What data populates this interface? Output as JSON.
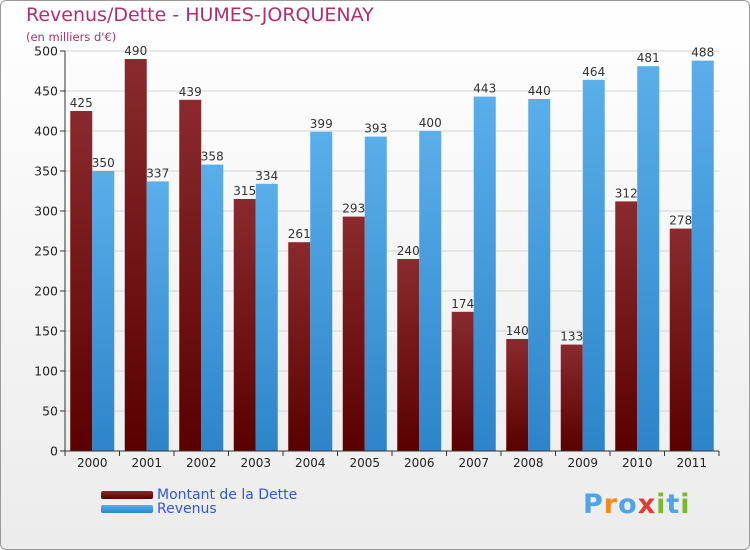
{
  "title": "Revenus/Dette - HUMES-JORQUENAY",
  "subtitle": "(en milliers d'€)",
  "colors": {
    "debt": "#6e0f16",
    "revenue": "#3f9ee6",
    "title": "#b0306a",
    "legend_text": "#3355dd"
  },
  "legend": [
    {
      "label": "Montant de la Dette",
      "color_key": "debt"
    },
    {
      "label": "Revenus",
      "color_key": "revenue"
    }
  ],
  "logo": {
    "letters": [
      "P",
      "r",
      "o",
      "x",
      "i",
      "t",
      "i"
    ],
    "colors": [
      "#4fa3e8",
      "#f08c1a",
      "#4fa3e8",
      "#e33b2f",
      "#7ab82e",
      "#4fa3e8",
      "#7ab82e"
    ]
  },
  "chart_data": {
    "type": "bar",
    "title": "Revenus/Dette - HUMES-JORQUENAY",
    "subtitle": "(en milliers d'€)",
    "categories": [
      "2000",
      "2001",
      "2002",
      "2003",
      "2004",
      "2005",
      "2006",
      "2007",
      "2008",
      "2009",
      "2010",
      "2011"
    ],
    "series": [
      {
        "name": "Montant de la Dette",
        "values": [
          425,
          490,
          439,
          315,
          261,
          293,
          240,
          174,
          140,
          133,
          312,
          278
        ]
      },
      {
        "name": "Revenus",
        "values": [
          350,
          337,
          358,
          334,
          399,
          393,
          400,
          443,
          440,
          464,
          481,
          488
        ]
      }
    ],
    "ylim": [
      0,
      500
    ],
    "yticks": [
      0,
      50,
      100,
      150,
      200,
      250,
      300,
      350,
      400,
      450,
      500
    ],
    "grid": "horizontal",
    "legend_position": "bottom-left"
  }
}
